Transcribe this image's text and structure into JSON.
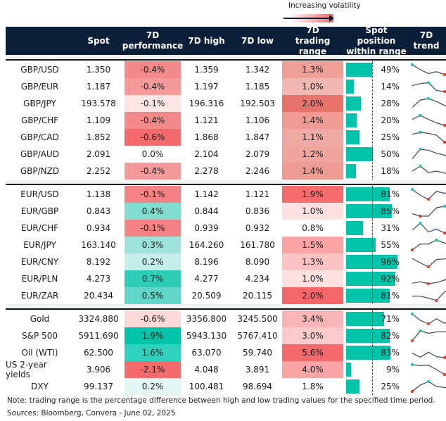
{
  "legend": {
    "label": "Increasing volatility"
  },
  "header": {
    "spot": "Spot",
    "perf": "7D performance",
    "high": "7D high",
    "low": "7D low",
    "range": "7D trading range",
    "position": "Spot position within range",
    "trend": "7D trend"
  },
  "colors": {
    "header_bg": "#0c1f38",
    "bar": "#00c4aa",
    "high_marker": "#1ec8b0",
    "low_marker": "#e0403a"
  },
  "groups": [
    [
      {
        "name": "GBP/USD",
        "spot": "1.350",
        "perf": "-0.4%",
        "perf_bg": "#f4898a",
        "high": "1.359",
        "low": "1.342",
        "range": "1.3%",
        "range_bg": "#ef9f98",
        "position": 49,
        "trend": [
          1.0,
          0.5,
          0.1,
          0.3,
          0.0,
          0.35
        ]
      },
      {
        "name": "GBP/EUR",
        "spot": "1.187",
        "perf": "-0.4%",
        "perf_bg": "#f59a9a",
        "high": "1.197",
        "low": "1.185",
        "range": "1.0%",
        "range_bg": "#f2b6b3",
        "position": 14,
        "trend": [
          0.6,
          0.8,
          0.9,
          0.1,
          0.0,
          0.05
        ]
      },
      {
        "name": "GBP/JPY",
        "spot": "193.578",
        "perf": "-0.1%",
        "perf_bg": "#fde6e6",
        "high": "196.316",
        "low": "192.503",
        "range": "2.0%",
        "range_bg": "#e8736b",
        "position": 28,
        "trend": [
          0.1,
          0.85,
          1.0,
          0.7,
          0.3,
          0.0
        ]
      },
      {
        "name": "GBP/CHF",
        "spot": "1.109",
        "perf": "-0.4%",
        "perf_bg": "#f4898a",
        "high": "1.121",
        "low": "1.106",
        "range": "1.4%",
        "range_bg": "#ef9b94",
        "position": 20,
        "trend": [
          0.6,
          1.0,
          0.6,
          0.25,
          0.0,
          0.3
        ]
      },
      {
        "name": "GBP/CAD",
        "spot": "1.852",
        "perf": "-0.6%",
        "perf_bg": "#f4696c",
        "high": "1.868",
        "low": "1.847",
        "range": "1.1%",
        "range_bg": "#f0aaa5",
        "position": 25,
        "trend": [
          0.8,
          1.0,
          0.9,
          0.7,
          0.0,
          0.15
        ]
      },
      {
        "name": "GBP/AUD",
        "spot": "2.091",
        "perf": "0.0%",
        "perf_bg": "#ffffff",
        "high": "2.104",
        "low": "2.079",
        "range": "1.2%",
        "range_bg": "#efa49e",
        "position": 50,
        "trend": [
          0.05,
          1.0,
          0.9,
          0.6,
          0.4,
          0.0
        ]
      },
      {
        "name": "GBP/NZD",
        "spot": "2.252",
        "perf": "-0.4%",
        "perf_bg": "#f5999a",
        "high": "2.278",
        "low": "2.246",
        "range": "1.4%",
        "range_bg": "#ee9b94",
        "position": 18,
        "trend": [
          0.5,
          1.0,
          0.35,
          0.5,
          0.3,
          0.0
        ]
      }
    ],
    [
      {
        "name": "EUR/USD",
        "spot": "1.138",
        "perf": "-0.1%",
        "perf_bg": "#f58282",
        "high": "1.142",
        "low": "1.121",
        "range": "1.9%",
        "range_bg": "#f66b6c",
        "position": 81,
        "trend": [
          1.0,
          0.4,
          0.0,
          0.8,
          0.6,
          0.85
        ]
      },
      {
        "name": "EUR/GBP",
        "spot": "0.843",
        "perf": "0.4%",
        "perf_bg": "#7fdccf",
        "high": "0.844",
        "low": "0.836",
        "range": "1.0%",
        "range_bg": "#fde0e0",
        "position": 85,
        "trend": [
          0.25,
          0.0,
          0.0,
          0.85,
          1.0,
          0.9
        ]
      },
      {
        "name": "EUR/CHF",
        "spot": "0.934",
        "perf": "-0.1%",
        "perf_bg": "#f58282",
        "high": "0.939",
        "low": "0.932",
        "range": "0.8%",
        "range_bg": "#ffffff",
        "position": 31,
        "trend": [
          0.3,
          1.0,
          0.1,
          0.4,
          0.0,
          0.2
        ]
      },
      {
        "name": "EUR/JPY",
        "spot": "163.140",
        "perf": "0.3%",
        "perf_bg": "#9fe4da",
        "high": "164.260",
        "low": "161.780",
        "range": "1.5%",
        "range_bg": "#f9a3a4",
        "position": 55,
        "trend": [
          0.0,
          0.6,
          0.6,
          1.0,
          0.7,
          0.4
        ]
      },
      {
        "name": "EUR/CNY",
        "spot": "8.192",
        "perf": "0.2%",
        "perf_bg": "#c5efe9",
        "high": "8.196",
        "low": "8.090",
        "range": "1.3%",
        "range_bg": "#fbc3c4",
        "position": 96,
        "trend": [
          0.85,
          0.4,
          0.0,
          0.75,
          0.8,
          1.0
        ]
      },
      {
        "name": "EUR/PLN",
        "spot": "4.273",
        "perf": "0.7%",
        "perf_bg": "#2ecdb8",
        "high": "4.277",
        "low": "4.234",
        "range": "1.0%",
        "range_bg": "#fde0e0",
        "position": 92,
        "trend": [
          0.05,
          0.2,
          0.0,
          0.12,
          0.37,
          1.0
        ]
      },
      {
        "name": "EUR/ZAR",
        "spot": "20.434",
        "perf": "0.5%",
        "perf_bg": "#5fd6c6",
        "high": "20.509",
        "low": "20.115",
        "range": "2.0%",
        "range_bg": "#f56668",
        "position": 81,
        "trend": [
          0.45,
          0.45,
          0.25,
          0.0,
          0.9,
          1.0
        ]
      }
    ],
    [
      {
        "name": "Gold",
        "spot": "3324.880",
        "perf": "-0.6%",
        "perf_bg": "#fcd9d9",
        "high": "3356.800",
        "low": "3245.500",
        "range": "3.4%",
        "range_bg": "#f7b5b5",
        "position": 71,
        "trend": [
          1.0,
          0.35,
          0.0,
          0.5,
          0.05,
          0.6
        ]
      },
      {
        "name": "S&P 500",
        "spot": "5911.690",
        "perf": "1.9%",
        "perf_bg": "#00c4aa",
        "high": "5943.130",
        "low": "5767.410",
        "range": "3.0%",
        "range_bg": "#fccacb",
        "position": 82,
        "trend": [
          0.0,
          1.0,
          0.75,
          0.9,
          0.9,
          0.9
        ]
      },
      {
        "name": "Oil (WTI)",
        "spot": "62.500",
        "perf": "1.6%",
        "perf_bg": "#2dd1bd",
        "high": "63.070",
        "low": "59.740",
        "range": "5.6%",
        "range_bg": "#f4696c",
        "position": 83,
        "trend": [
          0.45,
          0.05,
          0.55,
          0.1,
          0.0,
          1.0
        ]
      },
      {
        "name": "US 2-year yields",
        "spot": "3.906",
        "perf": "-2.1%",
        "perf_bg": "#f56a6c",
        "high": "4.048",
        "low": "3.891",
        "range": "4.0%",
        "range_bg": "#f8a4a5",
        "position": 9,
        "trend": [
          1.0,
          0.9,
          0.95,
          0.5,
          0.0,
          0.2
        ]
      },
      {
        "name": "DXY",
        "spot": "99.137",
        "perf": "0.2%",
        "perf_bg": "#e3f6f3",
        "high": "100.481",
        "low": "98.694",
        "range": "1.8%",
        "range_bg": "#ffffff",
        "position": 25,
        "trend": [
          0.0,
          0.65,
          1.0,
          0.5,
          0.4,
          0.3
        ]
      }
    ]
  ],
  "footer": {
    "note": "Note: trading range is the percentage difference between high and low trading values for the specified time period.",
    "sources": "Sources: Bloomberg, Convera - June 02, 2025"
  }
}
